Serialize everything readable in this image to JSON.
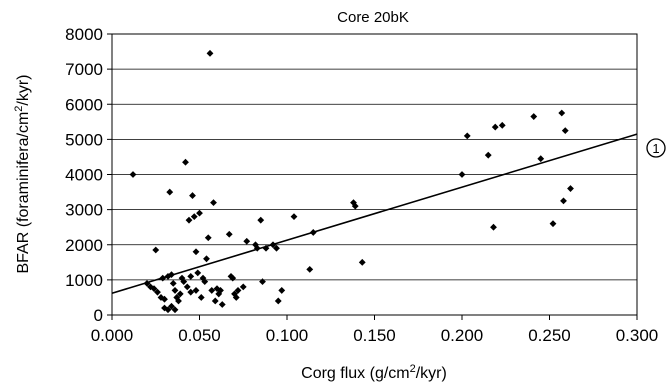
{
  "chart_data": {
    "type": "scatter",
    "title": "Core 20bK",
    "xlabel": {
      "prefix": "Corg flux (g/cm",
      "sup": "2",
      "suffix": "/kyr)"
    },
    "ylabel": {
      "prefix": "BFAR (foraminifera/cm",
      "sup": "2",
      "suffix": "/kyr)"
    },
    "xlim": [
      0,
      0.3
    ],
    "ylim": [
      0,
      8000
    ],
    "xticks": [
      "0.000",
      "0.050",
      "0.100",
      "0.150",
      "0.200",
      "0.250",
      "0.300"
    ],
    "yticks": [
      "0",
      "1000",
      "2000",
      "3000",
      "4000",
      "5000",
      "6000",
      "7000",
      "8000"
    ],
    "grid": "horizontal",
    "legend": "none",
    "marker_color": "#000000",
    "points": [
      [
        0.012,
        4000
      ],
      [
        0.025,
        1850
      ],
      [
        0.02,
        900
      ],
      [
        0.022,
        800
      ],
      [
        0.024,
        750
      ],
      [
        0.026,
        650
      ],
      [
        0.028,
        500
      ],
      [
        0.03,
        450
      ],
      [
        0.029,
        1050
      ],
      [
        0.032,
        1100
      ],
      [
        0.033,
        3500
      ],
      [
        0.034,
        1150
      ],
      [
        0.035,
        900
      ],
      [
        0.036,
        700
      ],
      [
        0.037,
        500
      ],
      [
        0.03,
        200
      ],
      [
        0.032,
        150
      ],
      [
        0.034,
        250
      ],
      [
        0.036,
        150
      ],
      [
        0.038,
        400
      ],
      [
        0.039,
        600
      ],
      [
        0.04,
        1050
      ],
      [
        0.041,
        950
      ],
      [
        0.042,
        4350
      ],
      [
        0.043,
        800
      ],
      [
        0.044,
        2700
      ],
      [
        0.045,
        1100
      ],
      [
        0.045,
        650
      ],
      [
        0.046,
        3400
      ],
      [
        0.047,
        2800
      ],
      [
        0.048,
        1800
      ],
      [
        0.048,
        700
      ],
      [
        0.049,
        1200
      ],
      [
        0.05,
        2900
      ],
      [
        0.051,
        500
      ],
      [
        0.052,
        1050
      ],
      [
        0.053,
        950
      ],
      [
        0.054,
        1600
      ],
      [
        0.055,
        2200
      ],
      [
        0.056,
        7450
      ],
      [
        0.057,
        700
      ],
      [
        0.058,
        3200
      ],
      [
        0.059,
        400
      ],
      [
        0.06,
        750
      ],
      [
        0.061,
        600
      ],
      [
        0.062,
        700
      ],
      [
        0.063,
        300
      ],
      [
        0.067,
        2300
      ],
      [
        0.068,
        1100
      ],
      [
        0.069,
        1050
      ],
      [
        0.07,
        600
      ],
      [
        0.071,
        500
      ],
      [
        0.072,
        700
      ],
      [
        0.075,
        800
      ],
      [
        0.077,
        2100
      ],
      [
        0.082,
        2000
      ],
      [
        0.083,
        1900
      ],
      [
        0.085,
        2700
      ],
      [
        0.086,
        950
      ],
      [
        0.088,
        1900
      ],
      [
        0.092,
        2000
      ],
      [
        0.094,
        1900
      ],
      [
        0.095,
        400
      ],
      [
        0.097,
        700
      ],
      [
        0.104,
        2800
      ],
      [
        0.113,
        1300
      ],
      [
        0.115,
        2350
      ],
      [
        0.138,
        3200
      ],
      [
        0.139,
        3100
      ],
      [
        0.143,
        1500
      ],
      [
        0.2,
        4000
      ],
      [
        0.203,
        5100
      ],
      [
        0.215,
        4550
      ],
      [
        0.218,
        2500
      ],
      [
        0.219,
        5350
      ],
      [
        0.223,
        5400
      ],
      [
        0.241,
        5650
      ],
      [
        0.245,
        4450
      ],
      [
        0.252,
        2600
      ],
      [
        0.257,
        5750
      ],
      [
        0.258,
        3250
      ],
      [
        0.259,
        5250
      ],
      [
        0.262,
        3600
      ]
    ],
    "trendline": {
      "x": [
        0,
        0.3
      ],
      "y": [
        620,
        5150
      ]
    },
    "annotation": "1"
  }
}
